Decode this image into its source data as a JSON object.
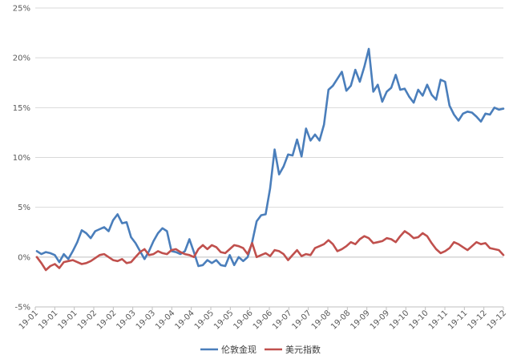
{
  "chart_data": {
    "type": "line",
    "title": "",
    "xlabel": "",
    "ylabel": "",
    "ylim": [
      -5,
      25
    ],
    "y_ticks": [
      -5,
      0,
      5,
      10,
      15,
      20,
      25
    ],
    "y_tick_labels": [
      "-5%",
      "0%",
      "5%",
      "10%",
      "15%",
      "20%",
      "25%"
    ],
    "x_tick_labels": [
      "19-01",
      "19-01",
      "19-01",
      "19-02",
      "19-02",
      "19-03",
      "19-03",
      "19-04",
      "19-04",
      "19-05",
      "19-05",
      "19-06",
      "19-06",
      "19-07",
      "19-07",
      "19-08",
      "19-08",
      "19-09",
      "19-09",
      "19-10",
      "19-10",
      "19-11",
      "19-11",
      "19-12",
      "19-12"
    ],
    "grid": true,
    "legend_position": "bottom",
    "series": [
      {
        "name": "伦敦金现",
        "color": "#4a7ebb",
        "values": [
          0.6,
          0.3,
          0.5,
          0.4,
          0.2,
          -0.5,
          0.3,
          -0.2,
          0.6,
          1.5,
          2.7,
          2.4,
          1.9,
          2.6,
          2.8,
          3.0,
          2.6,
          3.7,
          4.3,
          3.4,
          3.5,
          2.0,
          1.4,
          0.6,
          -0.2,
          0.6,
          1.6,
          2.4,
          2.9,
          2.6,
          0.6,
          0.5,
          0.3,
          0.6,
          1.8,
          0.5,
          -0.9,
          -0.8,
          -0.3,
          -0.6,
          -0.3,
          -0.8,
          -0.9,
          0.2,
          -0.8,
          0.0,
          -0.4,
          0.0,
          1.5,
          3.6,
          4.2,
          4.3,
          6.9,
          10.8,
          8.3,
          9.1,
          10.3,
          10.2,
          11.8,
          10.1,
          12.9,
          11.7,
          12.3,
          11.7,
          13.3,
          16.8,
          17.2,
          17.9,
          18.6,
          16.7,
          17.2,
          18.8,
          17.6,
          19.1,
          20.9,
          16.6,
          17.3,
          15.6,
          16.6,
          17.0,
          18.3,
          16.8,
          16.9,
          16.1,
          15.5,
          16.8,
          16.2,
          17.3,
          16.3,
          15.8,
          17.8,
          17.6,
          15.2,
          14.3,
          13.7,
          14.4,
          14.6,
          14.5,
          14.1,
          13.6,
          14.4,
          14.3,
          15.0,
          14.8,
          14.9
        ]
      },
      {
        "name": "美元指数",
        "color": "#c0504d",
        "values": [
          0.0,
          -0.6,
          -1.3,
          -0.9,
          -0.7,
          -1.1,
          -0.5,
          -0.4,
          -0.3,
          -0.5,
          -0.7,
          -0.6,
          -0.4,
          -0.1,
          0.2,
          0.3,
          0.0,
          -0.3,
          -0.4,
          -0.2,
          -0.6,
          -0.5,
          0.0,
          0.5,
          0.8,
          0.2,
          0.3,
          0.6,
          0.4,
          0.3,
          0.7,
          0.8,
          0.5,
          0.3,
          0.2,
          0.0,
          0.8,
          1.2,
          0.8,
          1.2,
          1.0,
          0.5,
          0.4,
          0.8,
          1.2,
          1.1,
          0.9,
          0.3,
          1.4,
          0.0,
          0.2,
          0.4,
          0.1,
          0.7,
          0.6,
          0.3,
          -0.3,
          0.2,
          0.7,
          0.1,
          0.3,
          0.2,
          0.9,
          1.1,
          1.3,
          1.7,
          1.3,
          0.6,
          0.8,
          1.1,
          1.5,
          1.3,
          1.8,
          2.1,
          1.9,
          1.4,
          1.5,
          1.6,
          1.9,
          1.8,
          1.5,
          2.1,
          2.6,
          2.3,
          1.9,
          2.0,
          2.4,
          2.1,
          1.4,
          0.8,
          0.4,
          0.6,
          0.9,
          1.5,
          1.3,
          1.0,
          0.7,
          1.1,
          1.5,
          1.3,
          1.4,
          0.9,
          0.8,
          0.7,
          0.2
        ]
      }
    ]
  }
}
